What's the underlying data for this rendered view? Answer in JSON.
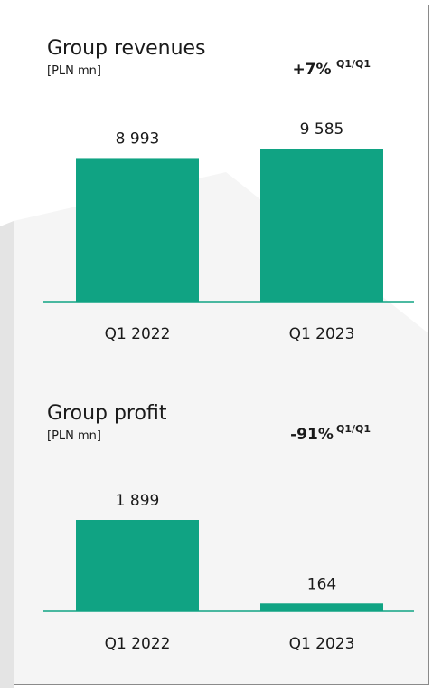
{
  "chart_data": [
    {
      "type": "bar",
      "title": "Group revenues",
      "subtitle": "[PLN mn]",
      "annotation": "+7%",
      "annotation_note": "Q1/Q1",
      "categories": [
        "Q1 2022",
        "Q1 2023"
      ],
      "values": [
        8993,
        9585
      ],
      "value_labels": [
        "8 993",
        "9 585"
      ],
      "color": "#10a383"
    },
    {
      "type": "bar",
      "title": "Group profit",
      "subtitle": "[PLN mn]",
      "annotation": "-91%",
      "annotation_note": "Q1/Q1",
      "categories": [
        "Q1 2022",
        "Q1 2023"
      ],
      "values": [
        1899,
        164
      ],
      "value_labels": [
        "1 899",
        "164"
      ],
      "color": "#10a383"
    }
  ]
}
